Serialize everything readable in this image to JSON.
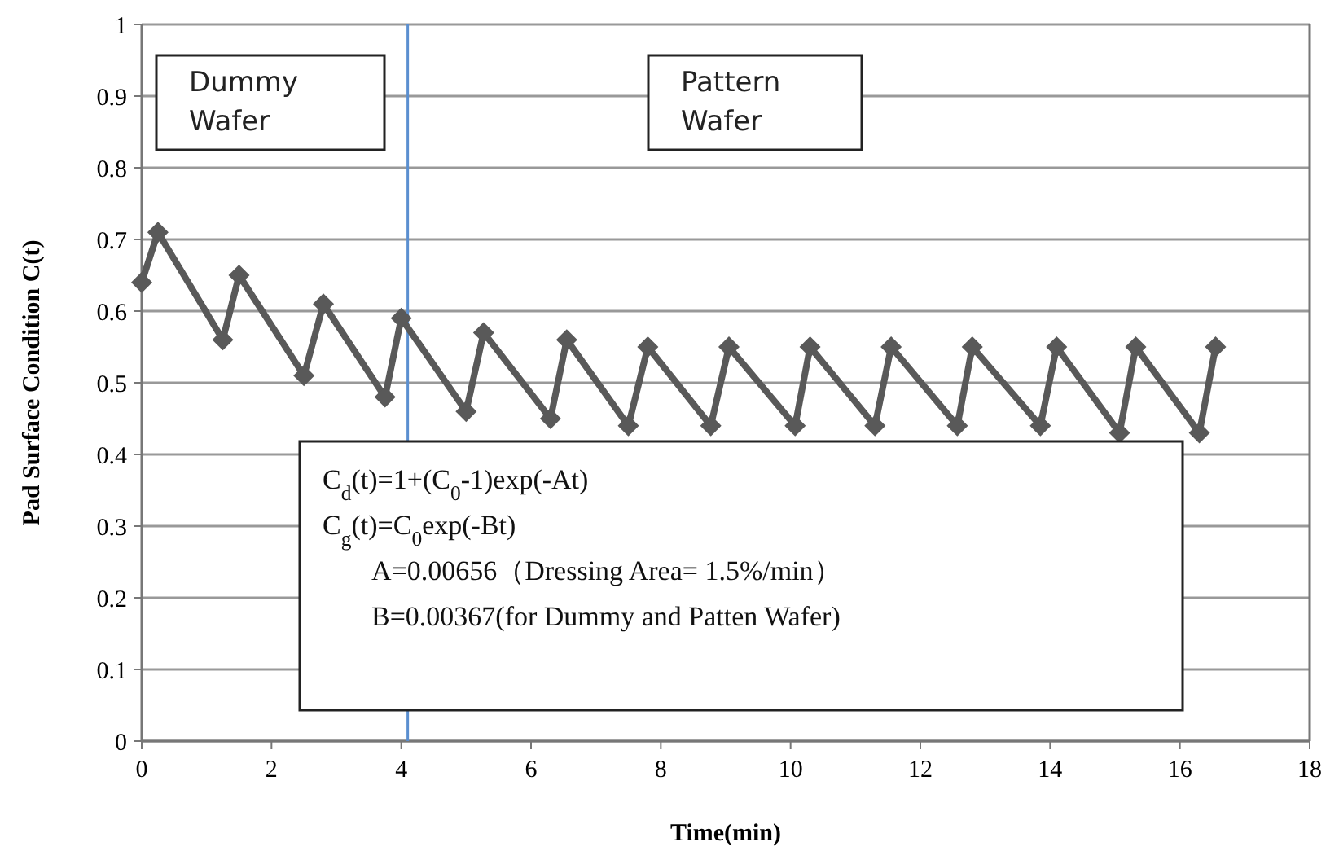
{
  "chart_data": {
    "type": "line",
    "xlabel": "Time(min)",
    "ylabel": "Pad Surface Condition  C(t)",
    "x": [
      0,
      0.25,
      1.25,
      1.5,
      2.5,
      2.8,
      3.75,
      4.0,
      5.0,
      5.27,
      6.3,
      6.55,
      7.5,
      7.8,
      8.77,
      9.05,
      10.07,
      10.3,
      11.3,
      11.55,
      12.57,
      12.8,
      13.85,
      14.1,
      15.07,
      15.32,
      16.3,
      16.55
    ],
    "series": [
      {
        "color": "#595959",
        "values": [
          0.64,
          0.71,
          0.56,
          0.65,
          0.51,
          0.61,
          0.48,
          0.59,
          0.46,
          0.57,
          0.45,
          0.56,
          0.44,
          0.55,
          0.44,
          0.55,
          0.44,
          0.55,
          0.44,
          0.55,
          0.44,
          0.55,
          0.44,
          0.55,
          0.43,
          0.55,
          0.43,
          0.55
        ]
      }
    ],
    "xlim": [
      0,
      18
    ],
    "xticks": [
      0,
      2,
      4,
      6,
      8,
      10,
      12,
      14,
      16,
      18
    ],
    "ylim": [
      0,
      1
    ],
    "yticks": [
      0,
      0.1,
      0.2,
      0.3,
      0.4,
      0.5,
      0.6,
      0.7,
      0.8,
      0.9,
      1
    ],
    "grid": "y",
    "marker": "diamond",
    "line_style": "solid",
    "ref_lines": [
      {
        "axis": "x",
        "value": 4.1,
        "color": "#5b8fd0"
      }
    ],
    "annotations": [
      "Dummy Wafer",
      "Pattern Wafer",
      "C$_{d}$(t)=1+(C$_{0}$-1)exp(-At)",
      "C$_{g}$(t)=C$_{0}$exp(-Bt)",
      "A=0.00656（Dressing Area= 1.5%/min）",
      "B=0.00367(for Dummy and Patten Wafer)"
    ]
  }
}
